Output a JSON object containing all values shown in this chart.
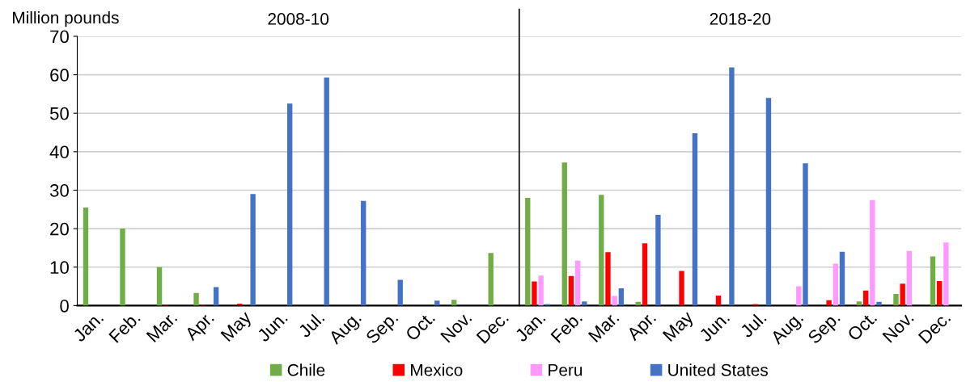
{
  "chart_data": {
    "type": "bar",
    "ylabel": "Million pounds",
    "categories": [
      "Jan.",
      "Feb.",
      "Mar.",
      "Apr.",
      "May",
      "Jun.",
      "Jul.",
      "Aug.",
      "Sep.",
      "Oct.",
      "Nov.",
      "Dec.",
      "Jan.",
      "Feb.",
      "Mar.",
      "Apr.",
      "May",
      "Jun.",
      "Jul.",
      "Aug.",
      "Sep.",
      "Oct.",
      "Nov.",
      "Dec."
    ],
    "series": [
      {
        "name": "Chile",
        "color": "#70ad47",
        "values": [
          25.5,
          20,
          10,
          3.3,
          0,
          0,
          0,
          0,
          0,
          0,
          1.5,
          13.7,
          28.0,
          37.2,
          28.8,
          1.0,
          0,
          0,
          0,
          0,
          null,
          1.1,
          3.0,
          12.8
        ]
      },
      {
        "name": "Mexico",
        "color": "#ff0000",
        "values": [
          0,
          0,
          0.2,
          0.2,
          0.5,
          0,
          0,
          0,
          0,
          0,
          0,
          0,
          6.3,
          7.7,
          13.9,
          16.2,
          9.0,
          2.6,
          0.4,
          null,
          1.4,
          3.9,
          5.7,
          6.4
        ]
      },
      {
        "name": "Peru",
        "color": "#ff99ff",
        "values": [
          0,
          0,
          0,
          0,
          0,
          0,
          0,
          0,
          0,
          0,
          0,
          0,
          7.8,
          11.7,
          2.5,
          0,
          0,
          0,
          0,
          5.0,
          10.9,
          27.4,
          14.2,
          16.4
        ]
      },
      {
        "name": "United States",
        "color": "#4472c4",
        "values": [
          0,
          0,
          0,
          4.8,
          29.0,
          52.5,
          59.3,
          27.2,
          6.7,
          1.3,
          0,
          0,
          0.4,
          1.1,
          4.5,
          23.6,
          44.8,
          61.9,
          54.0,
          37.0,
          14.0,
          1.0,
          0,
          0
        ]
      }
    ],
    "ylim": [
      0,
      70
    ],
    "yticks": [
      0,
      10,
      20,
      30,
      40,
      50,
      60,
      70
    ],
    "grid": "y",
    "legend": "bottom",
    "ref_lines": [
      {
        "axis": "x",
        "value": "Dec.",
        "color": "#000000"
      }
    ],
    "annotations": [
      "2008-10",
      "2018-20"
    ]
  }
}
